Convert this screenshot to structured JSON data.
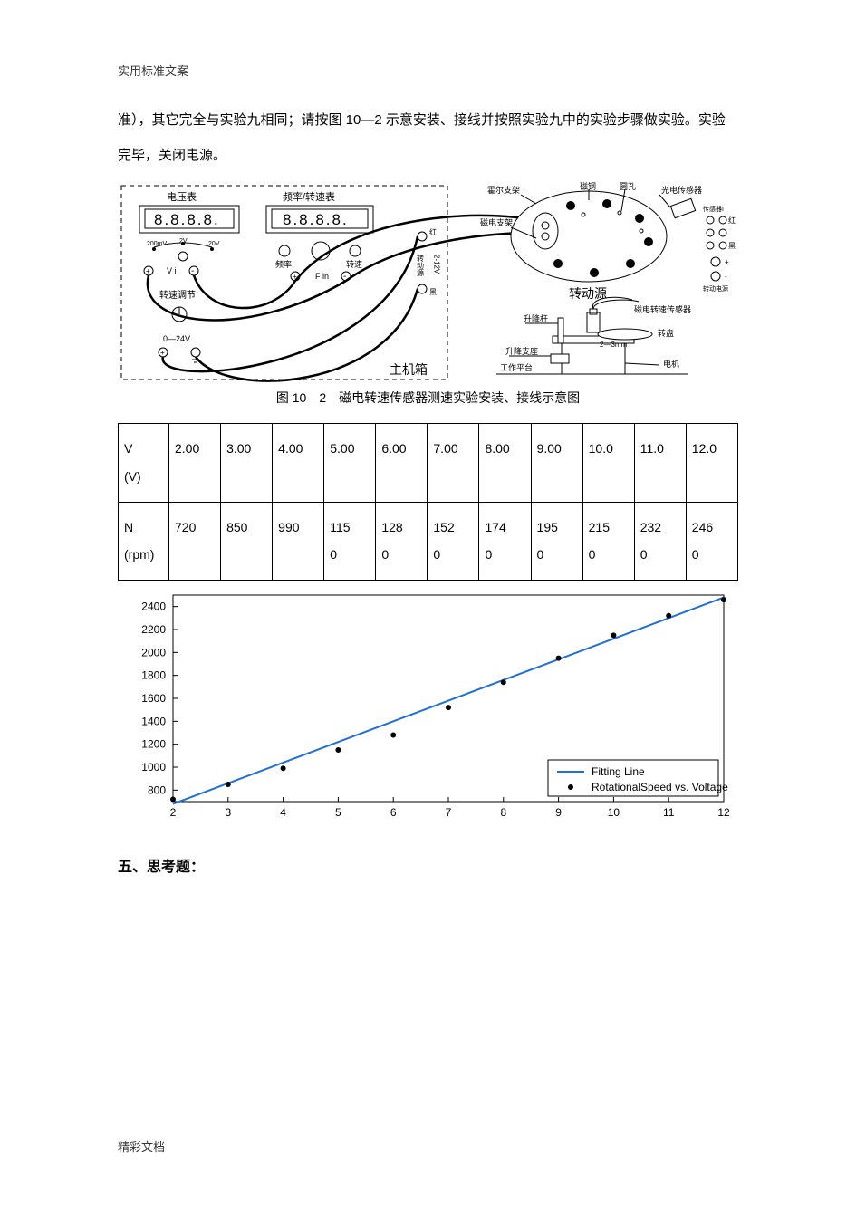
{
  "header_label": "实用标准文案",
  "footer_label": "精彩文档",
  "body_text": "准），其它完全与实验九相同；请按图 10—2 示意安装、接线并按照实验九中的实验步骤做实验。实验完毕，关闭电源。",
  "caption": "图 10—2　磁电转速传感器测速实验安装、接线示意图",
  "diagram": {
    "main_box_label": "主机箱",
    "voltmeter_label": "电压表",
    "freq_rpm_label": "频率/转速表",
    "display_text": "8.8.8.8.",
    "range_labels": [
      "200mV",
      "2V",
      "20V"
    ],
    "vi_label": "V i",
    "fin_label": "F in",
    "freq_btn": "频率",
    "rpm_btn": "转速",
    "speed_adj": "转速调节",
    "voltage_out": "0—24V",
    "rotation_source": "转动源",
    "hall_bracket": "霍尔支架",
    "mag_bracket": "磁电支架",
    "disk_steel": "磁钢",
    "hole": "圆孔",
    "photo_sensor": "光电传感器",
    "mag_speed_sensor": "磁电转速传感器",
    "turntable": "转盘",
    "motor": "电机",
    "lift_rod": "升降杆",
    "lift_base": "升降支座",
    "work_platform": "工作平台",
    "gap": "2—3mm",
    "rotation_src_vert": "转动源",
    "v_2_12": "2-12V",
    "red": "红",
    "black": "黑"
  },
  "table": {
    "row_headers": [
      "V\n(V)",
      "N\n(rpm)"
    ],
    "columns": [
      "2.00",
      "3.00",
      "4.00",
      "5.00",
      "6.00",
      "7.00",
      "8.00",
      "9.00",
      "10.0",
      "11.0",
      "12.0"
    ],
    "rpm_cells": [
      "720",
      "850",
      "990",
      "115\n0",
      "128\n0",
      "152\n0",
      "174\n0",
      "195\n0",
      "215\n0",
      "232\n0",
      "246\n0"
    ]
  },
  "chart": {
    "type": "scatter-with-fit-line",
    "x_values": [
      2,
      3,
      4,
      5,
      6,
      7,
      8,
      9,
      10,
      11,
      12
    ],
    "y_values": [
      720,
      850,
      990,
      1150,
      1280,
      1520,
      1740,
      1950,
      2150,
      2320,
      2460
    ],
    "line_start": {
      "x": 2,
      "y": 680
    },
    "line_end": {
      "x": 12,
      "y": 2480
    },
    "xlim": [
      2,
      12
    ],
    "ylim": [
      700,
      2500
    ],
    "xticks": [
      2,
      3,
      4,
      5,
      6,
      7,
      8,
      9,
      10,
      11,
      12
    ],
    "yticks": [
      800,
      1000,
      1200,
      1400,
      1600,
      1800,
      2000,
      2200,
      2400
    ],
    "line_color": "#1f6fd4",
    "marker_color": "#000000",
    "border_color": "#000000",
    "background_color": "#ffffff",
    "grid": false,
    "legend_line": "Fitting Line",
    "legend_scatter": "RotationalSpeed vs. Voltage",
    "legend_border": "#000000",
    "axis_fontsize": 12,
    "line_width": 2,
    "marker_size": 3
  },
  "section_heading": "五、思考题："
}
